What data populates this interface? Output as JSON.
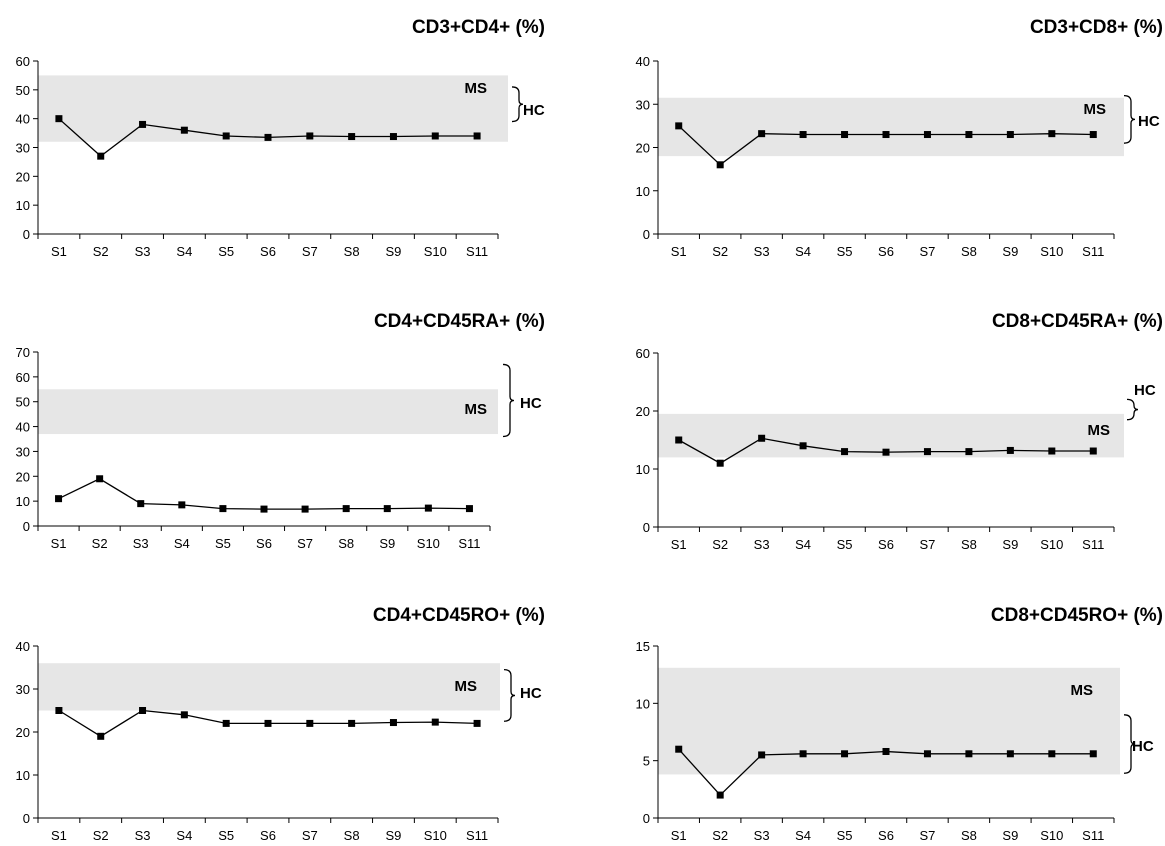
{
  "chart_data": [
    {
      "type": "line",
      "title": "CD3+CD4+ (%)",
      "categories": [
        "S1",
        "S2",
        "S3",
        "S4",
        "S5",
        "S6",
        "S7",
        "S8",
        "S9",
        "S10",
        "S11"
      ],
      "series": [
        {
          "values": [
            40,
            27,
            38,
            36,
            34,
            33.5,
            34,
            33.8,
            33.8,
            34,
            34
          ]
        }
      ],
      "ylim": [
        0,
        60
      ],
      "yticks": [
        0,
        10,
        20,
        30,
        40,
        50,
        60
      ],
      "ms_band": {
        "label": "MS",
        "range": [
          32,
          55
        ]
      },
      "hc_range": {
        "label": "HC",
        "range": [
          39,
          51
        ]
      },
      "grid": false,
      "colors": {
        "line": "#000000",
        "band": "#e6e6e6"
      }
    },
    {
      "type": "line",
      "title": "CD3+CD8+ (%)",
      "categories": [
        "S1",
        "S2",
        "S3",
        "S4",
        "S5",
        "S6",
        "S7",
        "S8",
        "S9",
        "S10",
        "S11"
      ],
      "series": [
        {
          "values": [
            25,
            16,
            23.2,
            23,
            23,
            23,
            23,
            23,
            23,
            23.2,
            23
          ]
        }
      ],
      "ylim": [
        0,
        40
      ],
      "yticks": [
        0,
        10,
        20,
        30,
        40
      ],
      "ms_band": {
        "label": "MS",
        "range": [
          18,
          31.5
        ]
      },
      "hc_range": {
        "label": "HC",
        "range": [
          21,
          32
        ]
      },
      "grid": false,
      "colors": {
        "line": "#000000",
        "band": "#e6e6e6"
      }
    },
    {
      "type": "line",
      "title": "CD4+CD45RA+ (%)",
      "categories": [
        "S1",
        "S2",
        "S3",
        "S4",
        "S5",
        "S6",
        "S7",
        "S8",
        "S9",
        "S10",
        "S11"
      ],
      "series": [
        {
          "values": [
            11,
            19,
            9,
            8.5,
            7,
            6.8,
            6.8,
            7,
            7,
            7.2,
            7
          ]
        }
      ],
      "ylim": [
        0,
        70
      ],
      "yticks": [
        0,
        10,
        20,
        30,
        40,
        50,
        60,
        70
      ],
      "ms_band": {
        "label": "MS",
        "range": [
          37,
          55
        ]
      },
      "hc_range": {
        "label": "HC",
        "range": [
          36,
          65
        ]
      },
      "grid": false,
      "colors": {
        "line": "#000000",
        "band": "#e6e6e6"
      }
    },
    {
      "type": "line",
      "title": "CD8+CD45RA+ (%)",
      "categories": [
        "S1",
        "S2",
        "S3",
        "S4",
        "S5",
        "S6",
        "S7",
        "S8",
        "S9",
        "S10",
        "S11"
      ],
      "series": [
        {
          "values": [
            15,
            11,
            15.3,
            14,
            13,
            12.9,
            13,
            13,
            13.2,
            13.1,
            13.1
          ]
        }
      ],
      "ylim": [
        0,
        60
      ],
      "yticks": [
        0,
        10,
        20,
        60
      ],
      "tick_heights": [
        0,
        10,
        20,
        30
      ],
      "ms_band": {
        "label": "MS",
        "range": [
          12,
          19.5
        ]
      },
      "hc_range": {
        "label": "HC",
        "range": [
          18.5,
          28
        ]
      },
      "grid": false,
      "colors": {
        "line": "#000000",
        "band": "#e6e6e6"
      }
    },
    {
      "type": "line",
      "title": "CD4+CD45RO+ (%)",
      "categories": [
        "S1",
        "S2",
        "S3",
        "S4",
        "S5",
        "S6",
        "S7",
        "S8",
        "S9",
        "S10",
        "S11"
      ],
      "series": [
        {
          "values": [
            25,
            19,
            25,
            24,
            22,
            22,
            22,
            22,
            22.2,
            22.3,
            22
          ]
        }
      ],
      "ylim": [
        0,
        40
      ],
      "yticks": [
        0,
        10,
        20,
        30,
        40
      ],
      "ms_band": {
        "label": "MS",
        "range": [
          25,
          36
        ]
      },
      "hc_range": {
        "label": "HC",
        "range": [
          22.5,
          34.5
        ]
      },
      "grid": false,
      "colors": {
        "line": "#000000",
        "band": "#e6e6e6"
      }
    },
    {
      "type": "line",
      "title": "CD8+CD45RO+ (%)",
      "categories": [
        "S1",
        "S2",
        "S3",
        "S4",
        "S5",
        "S6",
        "S7",
        "S8",
        "S9",
        "S10",
        "S11"
      ],
      "series": [
        {
          "values": [
            6,
            2,
            5.5,
            5.6,
            5.6,
            5.8,
            5.6,
            5.6,
            5.6,
            5.6,
            5.6
          ]
        }
      ],
      "ylim": [
        0,
        15
      ],
      "yticks": [
        0,
        5,
        10,
        15
      ],
      "ms_band": {
        "label": "MS",
        "range": [
          3.8,
          13.1
        ]
      },
      "hc_range": {
        "label": "HC",
        "range": [
          3.9,
          9
        ]
      },
      "grid": false,
      "colors": {
        "line": "#000000",
        "band": "#e6e6e6"
      }
    }
  ]
}
